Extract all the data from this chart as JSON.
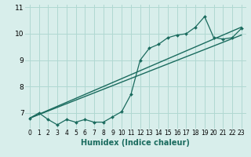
{
  "xlabel": "Humidex (Indice chaleur)",
  "bg_color": "#d8eeeb",
  "grid_color": "#b0d8d2",
  "line_color": "#1a6b5e",
  "xlim": [
    -0.5,
    23.5
  ],
  "ylim": [
    6.4,
    11.1
  ],
  "yticks": [
    7,
    8,
    9,
    10,
    11
  ],
  "data_x": [
    0,
    1,
    2,
    3,
    4,
    5,
    6,
    7,
    8,
    9,
    10,
    11,
    12,
    13,
    14,
    15,
    16,
    17,
    18,
    19,
    20,
    21,
    22,
    23
  ],
  "data_y": [
    6.8,
    7.0,
    6.75,
    6.55,
    6.75,
    6.65,
    6.75,
    6.65,
    6.65,
    6.85,
    7.05,
    7.7,
    9.0,
    9.45,
    9.6,
    9.85,
    9.95,
    10.0,
    10.25,
    10.65,
    9.85,
    9.8,
    9.85,
    10.2
  ],
  "line1_x": [
    0,
    23
  ],
  "line1_y": [
    6.8,
    9.95
  ],
  "line2_x": [
    0,
    23
  ],
  "line2_y": [
    6.8,
    10.25
  ],
  "xtick_fontsize": 5.5,
  "ytick_fontsize": 6.5,
  "xlabel_fontsize": 7.0
}
